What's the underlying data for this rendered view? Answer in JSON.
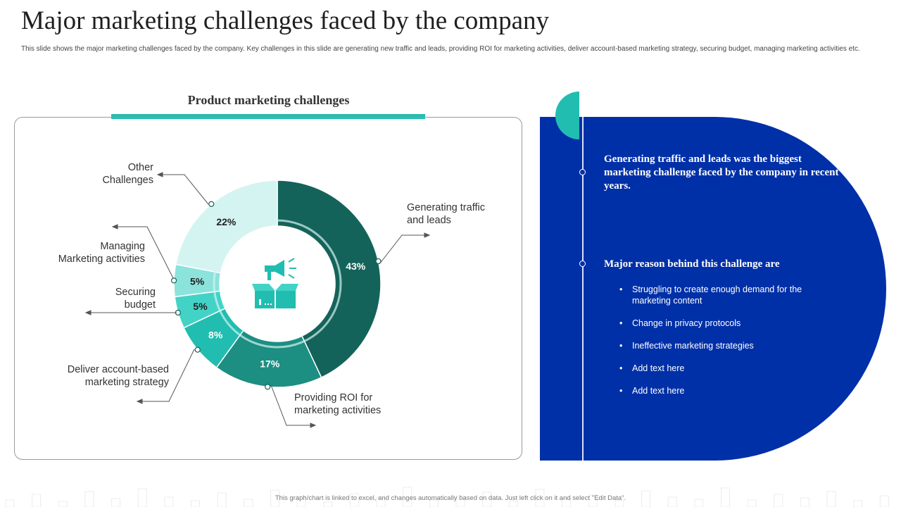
{
  "header": {
    "title": "Major marketing challenges faced by the company",
    "subtitle": "This slide shows the major marketing challenges faced by the company. Key challenges in this slide are generating new traffic and leads, providing ROI  for marketing activities, deliver account-based marketing strategy, securing budget, managing marketing activities etc."
  },
  "panel": {
    "title": "Product marketing challenges",
    "center_icon": "megaphone-box-icon"
  },
  "chart_data": {
    "type": "pie",
    "subtype": "donut",
    "title": "Product marketing challenges",
    "categories": [
      "Generating traffic and leads",
      "Providing ROI for marketing activities",
      "Deliver account-based marketing strategy",
      "Securing budget",
      "Managing Marketing activities",
      "Other Challenges"
    ],
    "values": [
      43,
      17,
      8,
      5,
      5,
      22
    ],
    "unit": "%",
    "data_labels": [
      "43%",
      "17%",
      "8%",
      "5%",
      "5%",
      "22%"
    ],
    "label_lines": [
      [
        "Generating traffic",
        "and leads"
      ],
      [
        "Providing ROI for",
        "marketing activities"
      ],
      [
        "Deliver account-based",
        "marketing strategy"
      ],
      [
        "Securing",
        "budget"
      ],
      [
        "Managing",
        "Marketing activities"
      ],
      [
        "Other",
        "Challenges"
      ]
    ],
    "colors": [
      "#14635a",
      "#1c8e82",
      "#21bdb0",
      "#42d3c6",
      "#8be3db",
      "#d4f4f1"
    ],
    "label_colors": [
      "#ffffff",
      "#ffffff",
      "#ffffff",
      "#1f1f1f",
      "#1f1f1f",
      "#1f1f1f"
    ]
  },
  "side": {
    "highlight": "Generating traffic and leads was the biggest marketing challenge faced by the company in recent years.",
    "reason_heading": "Major reason behind this challenge are",
    "bullet_symbol": "•",
    "reasons": [
      "Struggling to create enough demand for the marketing content",
      "Change  in privacy  protocols",
      "Ineffective  marketing strategies",
      "Add text here",
      "Add text here"
    ]
  },
  "footer": {
    "note": "This graph/chart is linked to excel, and changes automatically based on data. Just left click on it and select \"Edit Data\"."
  },
  "colors": {
    "accent": "#21bdb0",
    "side_panel": "#0030a8",
    "donut_dark": "#14635a"
  }
}
